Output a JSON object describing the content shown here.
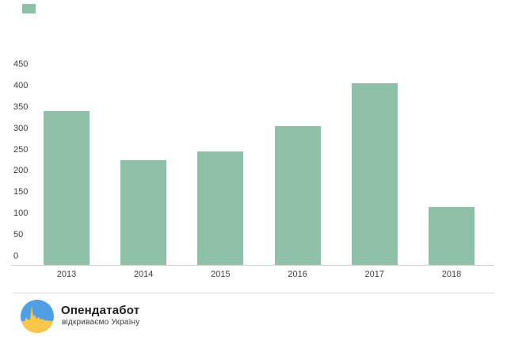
{
  "legend_swatch": {
    "color": "#8ec1a8"
  },
  "chart_data": {
    "type": "bar",
    "title": "",
    "xlabel": "",
    "ylabel": "",
    "categories": [
      "2013",
      "2014",
      "2015",
      "2016",
      "2017",
      "2018"
    ],
    "values": [
      340,
      225,
      245,
      305,
      405,
      115
    ],
    "ylim": [
      0,
      450
    ],
    "yticks": [
      0,
      50,
      100,
      150,
      200,
      250,
      300,
      350,
      400,
      450
    ],
    "bar_color": "#8ec1a8",
    "axis_text_color": "#3d3d3d",
    "grid": false,
    "legend_position": "top-left swatch only"
  },
  "footer": {
    "brand_name": "Опендатабот",
    "brand_tagline": "відкриваємо Україну",
    "logo_colors": {
      "blue": "#4f9fe6",
      "yellow": "#f8c649"
    }
  }
}
